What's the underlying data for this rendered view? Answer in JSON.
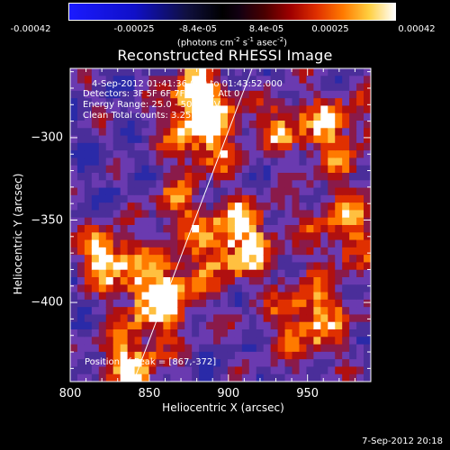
{
  "title": "Reconstructed RHESSI Image",
  "colorbar": {
    "ticks": [
      "-0.00042",
      "-0.00025",
      "-8.4e-05",
      "8.4e-05",
      "0.00025",
      "0.00042"
    ],
    "units_label": "(photons cm-2 s-1 asec-2)"
  },
  "info": {
    "time_range": "4-Sep-2012 01:41:36.000 to 01:43:52.000",
    "detectors": "Detectors: 3F 5F 6F 7F 8F 9F, Att 0",
    "energy_range": "Energy Range: 25.0 - 50.0 keV",
    "clean_counts": "Clean    Total counts: 3.25E+03",
    "peak": "Position of Peak = [867,-372]"
  },
  "timestamp": "7-Sep-2012 20:18",
  "chart_data": {
    "type": "heatmap",
    "title": "Reconstructed RHESSI Image",
    "xlabel": "Heliocentric X (arcsec)",
    "ylabel": "Heliocentric Y (arcsec)",
    "xlim": [
      800,
      990
    ],
    "ylim": [
      -448,
      -258
    ],
    "x_ticks": [
      800,
      850,
      900,
      950
    ],
    "y_ticks": [
      -300,
      -350,
      -400
    ],
    "colorbar_range": [
      -0.00042,
      0.00042
    ],
    "peak_position": [
      867,
      -372
    ],
    "limb_line": {
      "x": [
        840,
        915
      ],
      "y": [
        -448,
        -258
      ]
    },
    "colors": {
      "neg_low": "#2020ff",
      "near_zero": "#6a3ab0",
      "mid": "#b01010",
      "high": "#ff8c00",
      "max": "#ffffff"
    }
  }
}
